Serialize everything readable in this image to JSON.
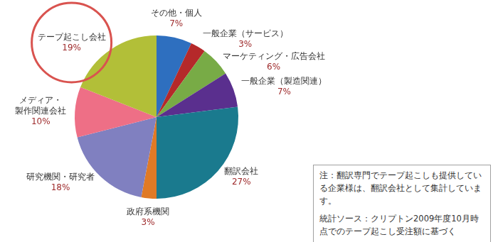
{
  "chart_data": {
    "type": "pie",
    "categories": [
      "その他・個人",
      "一般企業（サービス）",
      "マーケティング・広告会社",
      "一般企業（製造関連）",
      "翻訳会社",
      "政府系機関",
      "研究機関・研究者",
      "メディア・製作関連会社",
      "テープ起こし会社"
    ],
    "values": [
      7,
      3,
      6,
      7,
      27,
      3,
      18,
      10,
      19
    ],
    "value_labels": [
      "7%",
      "3%",
      "6%",
      "7%",
      "27%",
      "3%",
      "18%",
      "10%",
      "19%"
    ],
    "colors": [
      "#2e6fbf",
      "#b5292a",
      "#78ab46",
      "#5a2f8e",
      "#1a7a8e",
      "#e07a26",
      "#8080c0",
      "#ee6f86",
      "#b2bf38"
    ],
    "data_labels": true,
    "annotations": [
      "注：翻訳専門でテープ起こしも提供している企業様は、翻訳会社として集計しています。",
      "統計ソース：クリプトン2009年度10月時点でのテープ起こし受注額に基づく"
    ]
  }
}
